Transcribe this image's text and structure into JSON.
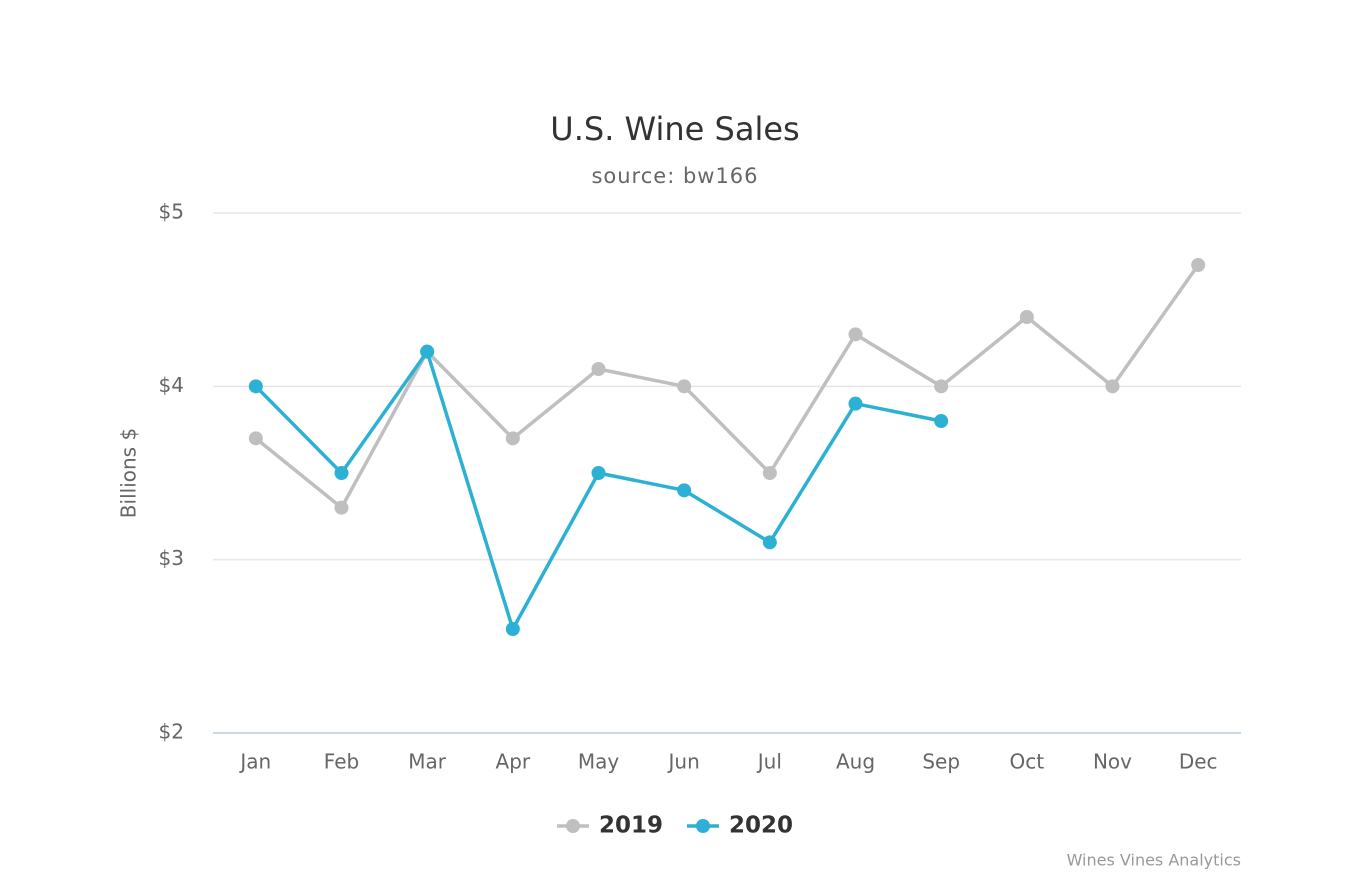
{
  "chart_data": {
    "type": "line",
    "title": "U.S. Wine Sales",
    "subtitle": "source: bw166",
    "y_label": "Billions $",
    "credits": "Wines Vines Analytics",
    "categories": [
      "Jan",
      "Feb",
      "Mar",
      "Apr",
      "May",
      "Jun",
      "Jul",
      "Aug",
      "Sep",
      "Oct",
      "Nov",
      "Dec"
    ],
    "series": [
      {
        "name": "2019",
        "color": "#bfbfbf",
        "values": [
          3.7,
          3.3,
          4.2,
          3.7,
          4.1,
          4.0,
          3.5,
          4.3,
          4.0,
          4.4,
          4.0,
          4.7
        ]
      },
      {
        "name": "2020",
        "color": "#2cb1d4",
        "values": [
          4.0,
          3.5,
          4.2,
          2.6,
          3.5,
          3.4,
          3.1,
          3.9,
          3.8,
          null,
          null,
          null
        ]
      }
    ],
    "ylim": [
      2,
      5
    ],
    "yticks": [
      {
        "value": 2,
        "label": "$2"
      },
      {
        "value": 3,
        "label": "$3"
      },
      {
        "value": 4,
        "label": "$4"
      },
      {
        "value": 5,
        "label": "$5"
      }
    ],
    "grid": true,
    "legend": "bottom"
  }
}
